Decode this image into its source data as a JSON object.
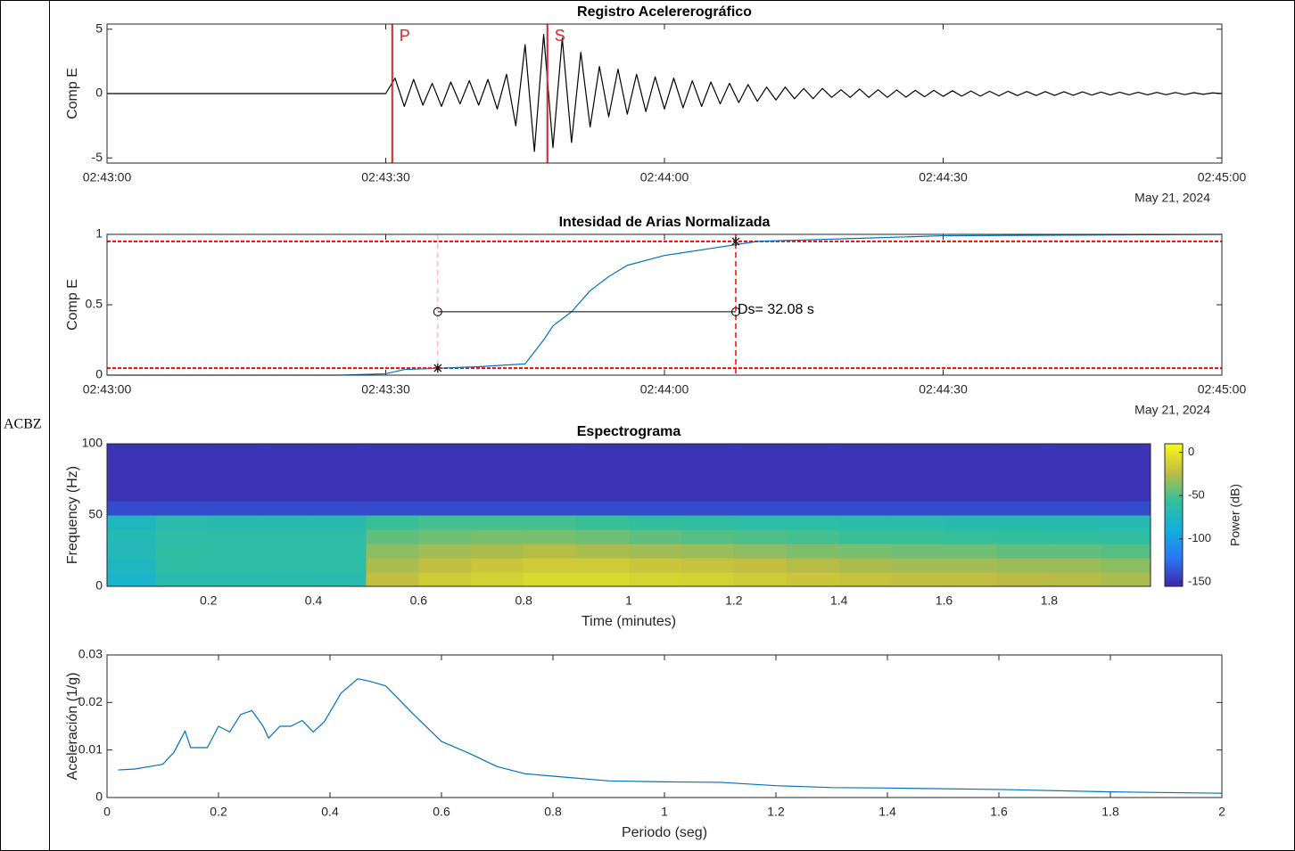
{
  "station_label": "ACBZ",
  "chart_data": [
    {
      "type": "line",
      "title": "Registro Acelererográfico",
      "ylabel": "Comp E",
      "date_label": "May 21, 2024",
      "xlim": [
        0,
        120
      ],
      "xticks": [
        {
          "value": 0,
          "label": "02:43:00"
        },
        {
          "value": 30,
          "label": "02:43:30"
        },
        {
          "value": 60,
          "label": "02:44:00"
        },
        {
          "value": 90,
          "label": "02:44:30"
        },
        {
          "value": 120,
          "label": "02:45:00"
        }
      ],
      "ylim": [
        -5.4,
        5.4
      ],
      "yticks": [
        -5,
        0,
        5
      ],
      "color": "#000000",
      "phases": [
        {
          "label": "P",
          "x": 30.7,
          "color": "#d62728"
        },
        {
          "label": "S",
          "x": 47.4,
          "color": "#d62728"
        }
      ],
      "x": [
        0,
        30,
        31,
        32,
        33,
        34,
        35,
        36,
        37,
        38,
        39,
        40,
        41,
        42,
        43,
        44,
        45,
        46,
        47,
        48,
        49,
        50,
        51,
        52,
        53,
        54,
        55,
        56,
        57,
        58,
        59,
        60,
        61,
        62,
        63,
        64,
        65,
        66,
        67,
        68,
        69,
        70,
        71,
        72,
        73,
        74,
        75,
        76,
        77,
        78,
        79,
        80,
        81,
        82,
        83,
        84,
        85,
        86,
        87,
        88,
        89,
        90,
        91,
        92,
        93,
        94,
        95,
        96,
        97,
        98,
        99,
        100,
        101,
        102,
        103,
        104,
        105,
        106,
        107,
        108,
        109,
        110,
        111,
        112,
        113,
        114,
        115,
        116,
        117,
        118,
        119,
        120
      ],
      "values": [
        0,
        0,
        1.2,
        -1.0,
        1.1,
        -0.9,
        0.8,
        -1.0,
        0.9,
        -0.8,
        1.0,
        -0.9,
        1.1,
        -1.2,
        1.5,
        -2.5,
        3.8,
        -4.5,
        4.6,
        -4.2,
        4.3,
        -3.8,
        3.2,
        -2.6,
        2.1,
        -1.8,
        1.9,
        -1.6,
        1.5,
        -1.4,
        1.3,
        -1.2,
        1.2,
        -1.1,
        1.0,
        -1.0,
        0.9,
        -0.8,
        0.8,
        -0.7,
        0.7,
        -0.6,
        0.5,
        -0.5,
        0.5,
        -0.4,
        0.4,
        -0.4,
        0.4,
        -0.3,
        0.3,
        -0.3,
        0.35,
        -0.3,
        0.3,
        -0.3,
        0.28,
        -0.28,
        0.25,
        -0.25,
        0.25,
        -0.22,
        0.22,
        -0.2,
        0.2,
        -0.2,
        0.18,
        -0.18,
        0.18,
        -0.16,
        0.16,
        -0.15,
        0.15,
        -0.14,
        0.14,
        -0.13,
        0.13,
        -0.12,
        0.12,
        -0.11,
        0.11,
        -0.1,
        0.1,
        -0.1,
        0.09,
        -0.09,
        0.08,
        -0.08,
        0.07,
        -0.06,
        0.05,
        0
      ]
    },
    {
      "type": "line",
      "title": "Intesidad de Arias Normalizada",
      "ylabel": "Comp E",
      "date_label": "May 21, 2024",
      "xlim": [
        0,
        120
      ],
      "xticks": [
        {
          "value": 0,
          "label": "02:43:00"
        },
        {
          "value": 30,
          "label": "02:43:30"
        },
        {
          "value": 60,
          "label": "02:44:00"
        },
        {
          "value": 90,
          "label": "02:44:30"
        },
        {
          "value": 120,
          "label": "02:45:00"
        }
      ],
      "ylim": [
        0,
        1
      ],
      "yticks": [
        0,
        0.5,
        1
      ],
      "color": "#0072bd",
      "x": [
        0,
        25,
        30,
        32,
        40,
        45,
        47,
        48,
        50,
        52,
        54,
        56,
        60,
        65,
        70,
        80,
        90,
        120
      ],
      "values": [
        0,
        0,
        0.01,
        0.04,
        0.06,
        0.08,
        0.25,
        0.35,
        0.45,
        0.6,
        0.7,
        0.78,
        0.85,
        0.9,
        0.95,
        0.97,
        0.99,
        1
      ],
      "thresholds": [
        0.05,
        0.95
      ],
      "duration_bounds": [
        35.6,
        67.68
      ],
      "bracket_level": 0.45,
      "annotation": "Ds= 32.08 s"
    },
    {
      "type": "heatmap",
      "title": "Espectrograma",
      "xlabel": "Time (minutes)",
      "ylabel": "Frequency (Hz)",
      "colorbar_label": "Power (dB)",
      "xlim": [
        0.007,
        1.993
      ],
      "xticks": [
        0.2,
        0.4,
        0.6,
        0.8,
        1,
        1.2,
        1.4,
        1.6,
        1.8
      ],
      "ylim": [
        0,
        100
      ],
      "yticks": [
        0,
        50,
        100
      ],
      "clim": [
        -155,
        10
      ],
      "cticks": [
        0,
        -50,
        -100,
        -150
      ],
      "x": [
        0.05,
        0.15,
        0.25,
        0.35,
        0.45,
        0.55,
        0.65,
        0.75,
        0.85,
        0.95,
        1.05,
        1.15,
        1.25,
        1.35,
        1.45,
        1.55,
        1.65,
        1.75,
        1.85,
        1.95
      ],
      "y": [
        5,
        15,
        25,
        35,
        45,
        55,
        65,
        75,
        85,
        95
      ],
      "power": [
        [
          -80,
          -65,
          -65,
          -65,
          -65,
          -22,
          -15,
          -12,
          -8,
          -8,
          -10,
          -12,
          -15,
          -18,
          -20,
          -22,
          -22,
          -24,
          -25,
          -28
        ],
        [
          -75,
          -62,
          -62,
          -63,
          -62,
          -28,
          -22,
          -18,
          -15,
          -15,
          -18,
          -20,
          -22,
          -25,
          -28,
          -30,
          -30,
          -32,
          -32,
          -35
        ],
        [
          -72,
          -60,
          -62,
          -62,
          -62,
          -35,
          -30,
          -28,
          -25,
          -28,
          -30,
          -32,
          -35,
          -38,
          -40,
          -42,
          -42,
          -45,
          -45,
          -48
        ],
        [
          -70,
          -62,
          -62,
          -63,
          -63,
          -45,
          -42,
          -40,
          -40,
          -42,
          -45,
          -48,
          -50,
          -52,
          -55,
          -55,
          -56,
          -58,
          -58,
          -60
        ],
        [
          -75,
          -65,
          -66,
          -66,
          -66,
          -55,
          -52,
          -52,
          -52,
          -55,
          -58,
          -60,
          -62,
          -63,
          -65,
          -65,
          -66,
          -66,
          -67,
          -68
        ],
        [
          -140,
          -140,
          -140,
          -140,
          -140,
          -140,
          -140,
          -140,
          -140,
          -140,
          -140,
          -140,
          -140,
          -140,
          -140,
          -140,
          -140,
          -140,
          -140,
          -140
        ],
        [
          -150,
          -150,
          -150,
          -150,
          -150,
          -150,
          -150,
          -150,
          -150,
          -150,
          -150,
          -150,
          -150,
          -150,
          -150,
          -150,
          -150,
          -150,
          -150,
          -150
        ],
        [
          -150,
          -150,
          -150,
          -150,
          -150,
          -150,
          -150,
          -150,
          -150,
          -150,
          -150,
          -150,
          -150,
          -150,
          -150,
          -150,
          -150,
          -150,
          -150,
          -150
        ],
        [
          -150,
          -150,
          -150,
          -150,
          -150,
          -150,
          -150,
          -150,
          -150,
          -150,
          -150,
          -150,
          -150,
          -150,
          -150,
          -150,
          -150,
          -150,
          -150,
          -150
        ],
        [
          -150,
          -150,
          -150,
          -150,
          -150,
          -150,
          -150,
          -150,
          -150,
          -150,
          -150,
          -150,
          -150,
          -150,
          -150,
          -150,
          -150,
          -150,
          -150,
          -150
        ]
      ]
    },
    {
      "type": "line",
      "xlabel": "Periodo (seg)",
      "ylabel": "Aceleración (1/g)",
      "xlim": [
        0,
        2
      ],
      "xticks": [
        0,
        0.2,
        0.4,
        0.6,
        0.8,
        1,
        1.2,
        1.4,
        1.6,
        1.8,
        2
      ],
      "ylim": [
        0,
        0.03
      ],
      "yticks": [
        0,
        0.01,
        0.02,
        0.03
      ],
      "color": "#0072bd",
      "x": [
        0.02,
        0.05,
        0.08,
        0.1,
        0.12,
        0.14,
        0.15,
        0.18,
        0.2,
        0.22,
        0.24,
        0.26,
        0.28,
        0.29,
        0.31,
        0.33,
        0.35,
        0.37,
        0.39,
        0.42,
        0.45,
        0.47,
        0.5,
        0.55,
        0.6,
        0.65,
        0.7,
        0.75,
        0.8,
        0.9,
        1.0,
        1.1,
        1.2,
        1.3,
        1.4,
        1.6,
        1.8,
        2.0
      ],
      "values": [
        0.0058,
        0.006,
        0.0066,
        0.007,
        0.0095,
        0.014,
        0.0105,
        0.0105,
        0.015,
        0.0138,
        0.0175,
        0.0183,
        0.015,
        0.0125,
        0.015,
        0.015,
        0.0162,
        0.0138,
        0.016,
        0.022,
        0.025,
        0.0245,
        0.0235,
        0.0175,
        0.0118,
        0.0093,
        0.0065,
        0.005,
        0.0045,
        0.0035,
        0.0033,
        0.0032,
        0.0025,
        0.0021,
        0.002,
        0.0017,
        0.0012,
        0.0009
      ]
    }
  ]
}
